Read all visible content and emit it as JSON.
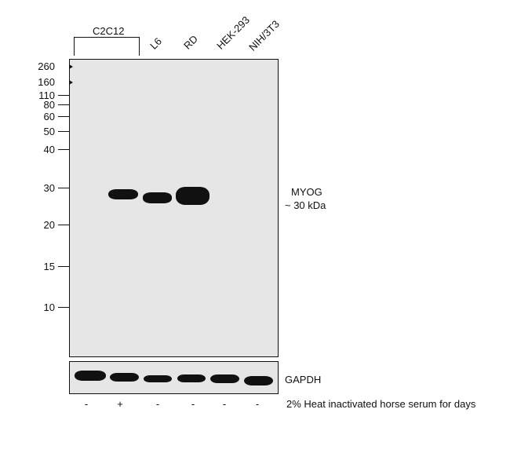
{
  "lanes": {
    "group_label": "C2C12",
    "labels": [
      "L6",
      "RD",
      "HEK-293",
      "NIH/3T3"
    ]
  },
  "mw_markers": [
    "260",
    "160",
    "110",
    "80",
    "60",
    "50",
    "40",
    "30",
    "20",
    "15",
    "10"
  ],
  "target": {
    "name": "MYOG",
    "size": "~ 30 kDa"
  },
  "loading_control": {
    "name": "GAPDH"
  },
  "treatment": {
    "label": "2% Heat inactivated horse serum for days",
    "signs": [
      "-",
      "+",
      "-",
      "-",
      "-",
      "-"
    ]
  }
}
